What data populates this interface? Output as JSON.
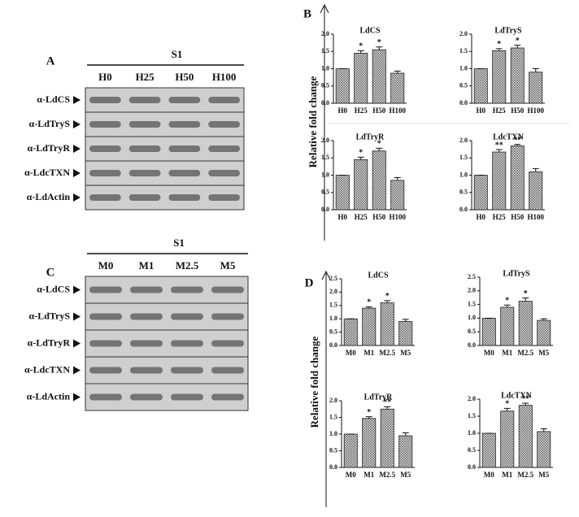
{
  "panel_labels": [
    "A",
    "B",
    "C",
    "D"
  ],
  "fold_axis_labels": [
    "Relative fold change",
    "Relative fold change"
  ],
  "blots": [
    {
      "group": "S1",
      "lanes": [
        "H0",
        "H25",
        "H50",
        "H100"
      ],
      "rows": [
        "α-LdCS",
        "α-LdTryS",
        "α-LdTryR",
        "α-LdcTXN",
        "α-LdActin"
      ]
    },
    {
      "group": "S1",
      "lanes": [
        "M0",
        "M1",
        "M2.5",
        "M5"
      ],
      "rows": [
        "α-LdCS",
        "α-LdTryS",
        "α-LdTryR",
        "α-LdcTXN",
        "α-LdActin"
      ]
    }
  ],
  "chart_data": [
    {
      "type": "bar",
      "title": "LdCS",
      "categories": [
        "H0",
        "H25",
        "H50",
        "H100"
      ],
      "values": [
        1.0,
        1.45,
        1.55,
        0.87
      ],
      "errors": [
        0,
        0.07,
        0.08,
        0.06
      ],
      "annotations": [
        null,
        "*",
        "*",
        null
      ],
      "ylim": [
        0,
        2
      ],
      "yticks": [
        {
          "value": 0,
          "label": "0.0"
        },
        0.5,
        {
          "value": 1,
          "label": "1.0"
        },
        1.5,
        {
          "value": 2,
          "label": "2.0"
        }
      ]
    },
    {
      "type": "bar",
      "title": "LdTryS",
      "categories": [
        "H0",
        "H25",
        "H50",
        "H100"
      ],
      "values": [
        1.0,
        1.52,
        1.6,
        0.9
      ],
      "errors": [
        0,
        0.06,
        0.08,
        0.1
      ],
      "annotations": [
        null,
        "*",
        "*",
        null
      ],
      "ylim": [
        0,
        2
      ],
      "yticks": [
        {
          "value": 0,
          "label": "0.0"
        },
        0.5,
        {
          "value": 1,
          "label": "1.0"
        },
        1.5,
        {
          "value": 2,
          "label": "2.0"
        }
      ]
    },
    {
      "type": "bar",
      "title": "LdTryR",
      "categories": [
        "H0",
        "H25",
        "H50",
        "H100"
      ],
      "values": [
        1.0,
        1.45,
        1.7,
        0.85
      ],
      "errors": [
        0,
        0.07,
        0.08,
        0.08
      ],
      "annotations": [
        null,
        "*",
        "*",
        null
      ],
      "ylim": [
        0,
        2
      ],
      "yticks": [
        {
          "value": 0,
          "label": "0.0"
        },
        0.5,
        {
          "value": 1,
          "label": "1.0"
        },
        1.5,
        {
          "value": 2,
          "label": "2.0"
        }
      ]
    },
    {
      "type": "bar",
      "title": "LdcTXN",
      "categories": [
        "H0",
        "H25",
        "H50",
        "H100"
      ],
      "values": [
        1.0,
        1.67,
        1.85,
        1.1
      ],
      "errors": [
        0,
        0.07,
        0.04,
        0.09
      ],
      "annotations": [
        null,
        "**",
        "**",
        null
      ],
      "ylim": [
        0,
        2
      ],
      "yticks": [
        {
          "value": 0,
          "label": "0.0"
        },
        0.5,
        {
          "value": 1,
          "label": "1.0"
        },
        1.5,
        {
          "value": 2,
          "label": "2.0"
        }
      ]
    },
    {
      "type": "bar",
      "title": "LdCS",
      "categories": [
        "M0",
        "M1",
        "M2.5",
        "M5"
      ],
      "values": [
        1.0,
        1.4,
        1.6,
        0.9
      ],
      "errors": [
        0,
        0.05,
        0.08,
        0.08
      ],
      "annotations": [
        null,
        "*",
        "*",
        null
      ],
      "ylim": [
        0,
        2.5
      ],
      "yticks": [
        {
          "value": 0,
          "label": "0.0"
        },
        0.5,
        {
          "value": 1,
          "label": "1.0"
        },
        1.5,
        {
          "value": 2,
          "label": "2.0"
        },
        2.5
      ]
    },
    {
      "type": "bar",
      "title": "LdTryS",
      "categories": [
        "M0",
        "M1",
        "M2.5",
        "M5"
      ],
      "values": [
        1.0,
        1.4,
        1.62,
        0.92
      ],
      "errors": [
        0,
        0.08,
        0.12,
        0.06
      ],
      "annotations": [
        null,
        "*",
        "*",
        null
      ],
      "ylim": [
        0,
        2.5
      ],
      "yticks": [
        {
          "value": 0,
          "label": "0.0"
        },
        0.5,
        {
          "value": 1,
          "label": "1.0"
        },
        1.5,
        {
          "value": 2,
          "label": "2.0"
        },
        2.5
      ]
    },
    {
      "type": "bar",
      "title": "LdTryR",
      "categories": [
        "M0",
        "M1",
        "M2.5",
        "M5"
      ],
      "values": [
        1.0,
        1.47,
        1.75,
        0.95
      ],
      "errors": [
        0,
        0.05,
        0.07,
        0.09
      ],
      "annotations": [
        null,
        "*",
        "**",
        null
      ],
      "ylim": [
        0,
        2
      ],
      "yticks": [
        {
          "value": 0,
          "label": "0.0"
        },
        0.5,
        {
          "value": 1,
          "label": "1.0"
        },
        1.5,
        {
          "value": 2,
          "label": "2.0"
        }
      ]
    },
    {
      "type": "bar",
      "title": "LdcTXN",
      "categories": [
        "M0",
        "M1",
        "M2.5",
        "M5"
      ],
      "values": [
        1.0,
        1.65,
        1.82,
        1.05
      ],
      "errors": [
        0,
        0.08,
        0.06,
        0.08
      ],
      "annotations": [
        null,
        "*",
        "**",
        null
      ],
      "ylim": [
        0,
        2
      ],
      "yticks": [
        {
          "value": 0,
          "label": "0.0"
        },
        0.5,
        {
          "value": 1,
          "label": "1.0"
        },
        1.5,
        {
          "value": 2,
          "label": "2.0"
        }
      ]
    }
  ]
}
